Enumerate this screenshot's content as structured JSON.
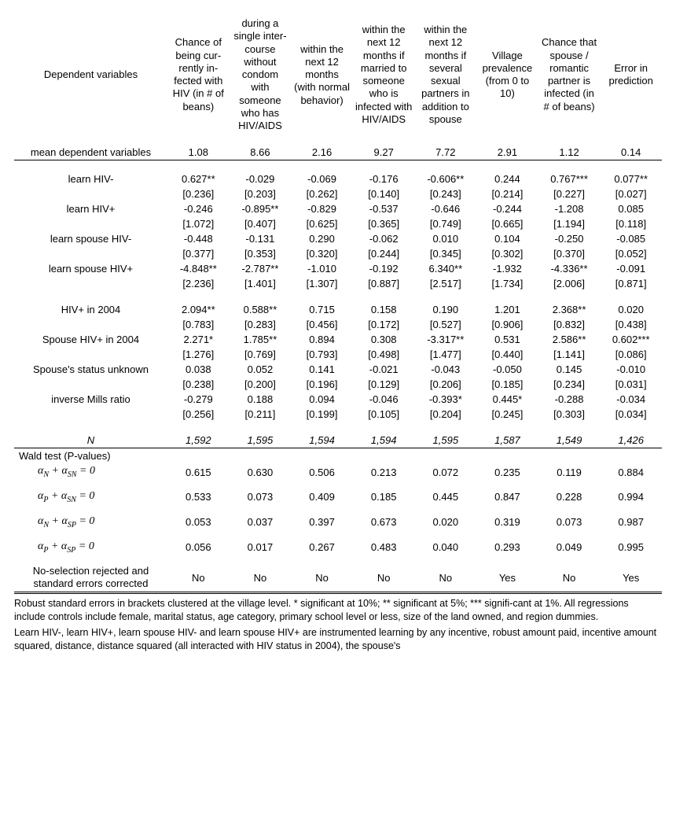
{
  "headers": {
    "depvar": "Dependent variables",
    "c1": "Chance of being cur-rently in-fected with HIV (in # of beans)",
    "c2": "during a single inter-course without condom with someone who has HIV/AIDS",
    "c3": "within the next 12 months (with normal behavior)",
    "c4": "within the next 12 months if married to someone who is infected with HIV/AIDS",
    "c5": "within the next 12 months if several sexual partners in addition to spouse",
    "c6": "Village prevalence (from 0 to 10)",
    "c7": "Chance that spouse / romantic partner is infected (in # of beans)",
    "c8": "Error in prediction"
  },
  "meanRow": {
    "label": "mean dependent variables",
    "vals": [
      "1.08",
      "8.66",
      "2.16",
      "9.27",
      "7.72",
      "2.91",
      "1.12",
      "0.14"
    ]
  },
  "coefRows": [
    {
      "label": "learn HIV-",
      "est": [
        "0.627**",
        "-0.029",
        "-0.069",
        "-0.176",
        "-0.606**",
        "0.244",
        "0.767***",
        "0.077**"
      ],
      "se": [
        "[0.236]",
        "[0.203]",
        "[0.262]",
        "[0.140]",
        "[0.243]",
        "[0.214]",
        "[0.227]",
        "[0.027]"
      ]
    },
    {
      "label": "learn HIV+",
      "est": [
        "-0.246",
        "-0.895**",
        "-0.829",
        "-0.537",
        "-0.646",
        "-0.244",
        "-1.208",
        "0.085"
      ],
      "se": [
        "[1.072]",
        "[0.407]",
        "[0.625]",
        "[0.365]",
        "[0.749]",
        "[0.665]",
        "[1.194]",
        "[0.118]"
      ]
    },
    {
      "label": "learn spouse HIV-",
      "est": [
        "-0.448",
        "-0.131",
        "0.290",
        "-0.062",
        "0.010",
        "0.104",
        "-0.250",
        "-0.085"
      ],
      "se": [
        "[0.377]",
        "[0.353]",
        "[0.320]",
        "[0.244]",
        "[0.345]",
        "[0.302]",
        "[0.370]",
        "[0.052]"
      ]
    },
    {
      "label": "learn spouse HIV+",
      "est": [
        "-4.848**",
        "-2.787**",
        "-1.010",
        "-0.192",
        "6.340**",
        "-1.932",
        "-4.336**",
        "-0.091"
      ],
      "se": [
        "[2.236]",
        "[1.401]",
        "[1.307]",
        "[0.887]",
        "[2.517]",
        "[1.734]",
        "[2.006]",
        "[0.871]"
      ]
    }
  ],
  "coefRows2": [
    {
      "label": "HIV+ in 2004",
      "est": [
        "2.094**",
        "0.588**",
        "0.715",
        "0.158",
        "0.190",
        "1.201",
        "2.368**",
        "0.020"
      ],
      "se": [
        "[0.783]",
        "[0.283]",
        "[0.456]",
        "[0.172]",
        "[0.527]",
        "[0.906]",
        "[0.832]",
        "[0.438]"
      ]
    },
    {
      "label": "Spouse HIV+ in 2004",
      "est": [
        "2.271*",
        "1.785**",
        "0.894",
        "0.308",
        "-3.317**",
        "0.531",
        "2.586**",
        "0.602***"
      ],
      "se": [
        "[1.276]",
        "[0.769]",
        "[0.793]",
        "[0.498]",
        "[1.477]",
        "[0.440]",
        "[1.141]",
        "[0.086]"
      ]
    },
    {
      "label": "Spouse's status unknown",
      "est": [
        "0.038",
        "0.052",
        "0.141",
        "-0.021",
        "-0.043",
        "-0.050",
        "0.145",
        "-0.010"
      ],
      "se": [
        "[0.238]",
        "[0.200]",
        "[0.196]",
        "[0.129]",
        "[0.206]",
        "[0.185]",
        "[0.234]",
        "[0.031]"
      ]
    },
    {
      "label": "inverse Mills ratio",
      "est": [
        "-0.279",
        "0.188",
        "0.094",
        "-0.046",
        "-0.393*",
        "0.445*",
        "-0.288",
        "-0.034"
      ],
      "se": [
        "[0.256]",
        "[0.211]",
        "[0.199]",
        "[0.105]",
        "[0.204]",
        "[0.245]",
        "[0.303]",
        "[0.034]"
      ]
    }
  ],
  "nRow": {
    "label": "N",
    "vals": [
      "1,592",
      "1,595",
      "1,594",
      "1,594",
      "1,595",
      "1,587",
      "1,549",
      "1,426"
    ]
  },
  "waldHeader": "Wald test (P-values)",
  "waldRows": [
    {
      "expr": "α<sub class='sub'>N</sub> + α<sub class='sub'>SN</sub> = 0",
      "vals": [
        "0.615",
        "0.630",
        "0.506",
        "0.213",
        "0.072",
        "0.235",
        "0.119",
        "0.884"
      ]
    },
    {
      "expr": "α<sub class='sub'>P</sub> + α<sub class='sub'>SN</sub> = 0",
      "vals": [
        "0.533",
        "0.073",
        "0.409",
        "0.185",
        "0.445",
        "0.847",
        "0.228",
        "0.994"
      ]
    },
    {
      "expr": "α<sub class='sub'>N</sub> + α<sub class='sub'>SP</sub> = 0",
      "vals": [
        "0.053",
        "0.037",
        "0.397",
        "0.673",
        "0.020",
        "0.319",
        "0.073",
        "0.987"
      ]
    },
    {
      "expr": "α<sub class='sub'>P</sub> + α<sub class='sub'>SP</sub> = 0",
      "vals": [
        "0.056",
        "0.017",
        "0.267",
        "0.483",
        "0.040",
        "0.293",
        "0.049",
        "0.995"
      ]
    }
  ],
  "noSelRow": {
    "label": "No-selection rejected and standard errors corrected",
    "vals": [
      "No",
      "No",
      "No",
      "No",
      "No",
      "Yes",
      "No",
      "Yes"
    ]
  },
  "footnote1": "Robust standard errors in brackets clustered at the village level. * significant at 10%; ** significant at 5%; *** signifi-cant at 1%. All regressions include controls include female, marital status, age category, primary school level or less, size of the land owned, and region dummies.",
  "footnote2": "Learn HIV-, learn HIV+, learn spouse HIV- and learn spouse HIV+ are instrumented learning by any incentive, robust amount paid, incentive amount squared, distance, distance squared (all interacted with HIV status in 2004), the spouse's"
}
